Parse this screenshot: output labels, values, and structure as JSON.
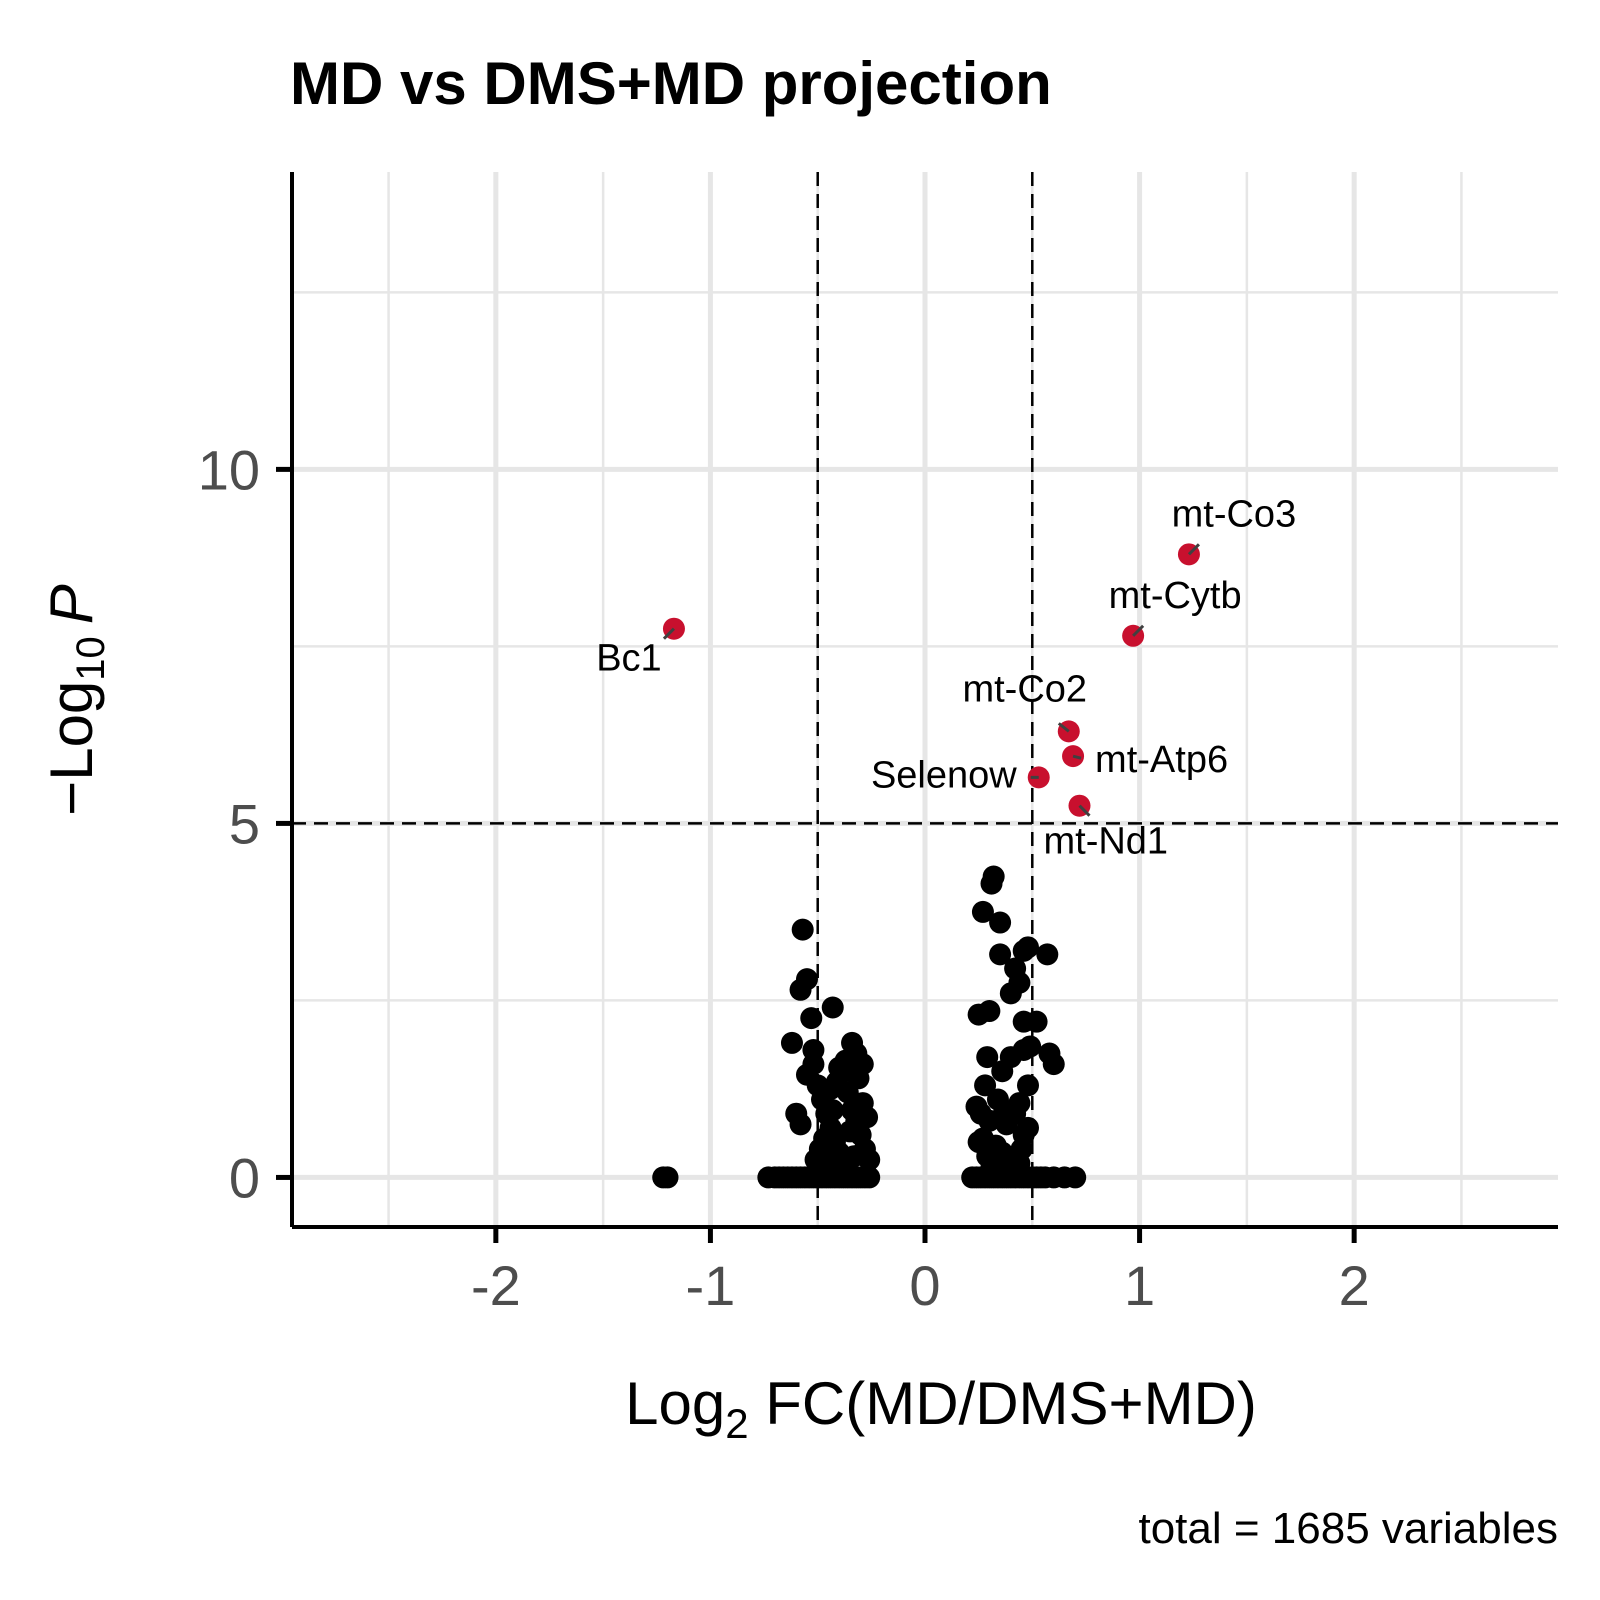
{
  "chart_data": {
    "type": "scatter",
    "title": "MD vs DMS+MD projection",
    "xlabel": {
      "prefix": "Log",
      "sub": "2",
      "suffix": " FC(MD/DMS+MD)"
    },
    "ylabel": {
      "prefix": "−Log",
      "sub": "10",
      "suffix": "P"
    },
    "caption": "total = 1685 variables",
    "xlim": [
      -2.95,
      2.95
    ],
    "ylim": [
      -0.7,
      14.2
    ],
    "x_ticks": [
      -2,
      -1,
      0,
      1,
      2
    ],
    "x_tick_labels": [
      "-2",
      "-1",
      "0",
      "1",
      "2"
    ],
    "y_ticks": [
      0,
      5,
      10
    ],
    "y_tick_labels": [
      "0",
      "5",
      "10"
    ],
    "fc_cutoff": 0.5,
    "p_cutoff": 5,
    "grid": true,
    "colors": {
      "ns": "#000000",
      "significant": "#c8102e",
      "connector": "#404040",
      "grid": "#e6e6e6"
    },
    "significant_points": [
      {
        "label": "mt-Co3",
        "x": 1.23,
        "y": 8.8
      },
      {
        "label": "mt-Cytb",
        "x": 0.97,
        "y": 7.65
      },
      {
        "label": "Bc1",
        "x": -1.17,
        "y": 7.75
      },
      {
        "label": "mt-Co2",
        "x": 0.67,
        "y": 6.3
      },
      {
        "label": "mt-Atp6",
        "x": 0.69,
        "y": 5.95
      },
      {
        "label": "Selenow",
        "x": 0.53,
        "y": 5.65
      },
      {
        "label": "mt-Nd1",
        "x": 0.72,
        "y": 5.25
      }
    ],
    "ns_points": [
      [
        -1.22,
        0
      ],
      [
        -1.2,
        0
      ],
      [
        -0.73,
        0
      ],
      [
        -0.7,
        0
      ],
      [
        -0.68,
        0
      ],
      [
        -0.66,
        0
      ],
      [
        -0.64,
        0
      ],
      [
        -0.62,
        0
      ],
      [
        -0.6,
        0
      ],
      [
        -0.58,
        0
      ],
      [
        -0.56,
        0
      ],
      [
        -0.54,
        0
      ],
      [
        -0.52,
        0
      ],
      [
        -0.5,
        0
      ],
      [
        -0.48,
        0
      ],
      [
        -0.46,
        0
      ],
      [
        -0.44,
        0
      ],
      [
        -0.42,
        0
      ],
      [
        -0.4,
        0
      ],
      [
        -0.38,
        0
      ],
      [
        -0.36,
        0
      ],
      [
        -0.34,
        0
      ],
      [
        -0.32,
        0
      ],
      [
        -0.3,
        0
      ],
      [
        -0.28,
        0
      ],
      [
        -0.26,
        0
      ],
      [
        -0.57,
        3.5
      ],
      [
        -0.55,
        2.8
      ],
      [
        -0.58,
        2.65
      ],
      [
        -0.43,
        2.4
      ],
      [
        -0.53,
        2.25
      ],
      [
        -0.62,
        1.9
      ],
      [
        -0.34,
        1.9
      ],
      [
        -0.52,
        1.8
      ],
      [
        -0.6,
        0.9
      ],
      [
        -0.58,
        0.75
      ],
      [
        -0.52,
        1.6
      ],
      [
        -0.5,
        1.3
      ],
      [
        -0.48,
        1.1
      ],
      [
        -0.46,
        0.9
      ],
      [
        -0.44,
        0.7
      ],
      [
        -0.42,
        0.5
      ],
      [
        -0.4,
        0.35
      ],
      [
        -0.38,
        1.5
      ],
      [
        -0.36,
        1.2
      ],
      [
        -0.34,
        0.95
      ],
      [
        -0.32,
        0.8
      ],
      [
        -0.3,
        0.6
      ],
      [
        -0.28,
        0.4
      ],
      [
        -0.26,
        0.25
      ],
      [
        -0.47,
        0.55
      ],
      [
        -0.41,
        1.35
      ],
      [
        -0.37,
        1.65
      ],
      [
        -0.31,
        1.4
      ],
      [
        -0.29,
        1.05
      ],
      [
        -0.27,
        0.85
      ],
      [
        -0.45,
        0.2
      ],
      [
        -0.39,
        0.15
      ],
      [
        -0.33,
        0.3
      ],
      [
        -0.49,
        0.4
      ],
      [
        -0.43,
        0.95
      ],
      [
        -0.35,
        0.65
      ],
      [
        -0.55,
        1.45
      ],
      [
        -0.51,
        0.25
      ],
      [
        -0.29,
        1.6
      ],
      [
        -0.32,
        1.75
      ],
      [
        -0.4,
        1.55
      ],
      [
        -0.44,
        1.25
      ],
      [
        0.22,
        0
      ],
      [
        0.24,
        0
      ],
      [
        0.26,
        0
      ],
      [
        0.28,
        0
      ],
      [
        0.3,
        0
      ],
      [
        0.32,
        0
      ],
      [
        0.34,
        0
      ],
      [
        0.36,
        0
      ],
      [
        0.38,
        0
      ],
      [
        0.4,
        0
      ],
      [
        0.42,
        0
      ],
      [
        0.44,
        0
      ],
      [
        0.46,
        0
      ],
      [
        0.48,
        0
      ],
      [
        0.5,
        0
      ],
      [
        0.52,
        0
      ],
      [
        0.54,
        0
      ],
      [
        0.56,
        0
      ],
      [
        0.6,
        0
      ],
      [
        0.65,
        0
      ],
      [
        0.7,
        0
      ],
      [
        0.32,
        4.25
      ],
      [
        0.31,
        4.15
      ],
      [
        0.27,
        3.75
      ],
      [
        0.35,
        3.6
      ],
      [
        0.35,
        3.15
      ],
      [
        0.46,
        3.2
      ],
      [
        0.48,
        3.25
      ],
      [
        0.57,
        3.15
      ],
      [
        0.42,
        2.95
      ],
      [
        0.4,
        2.6
      ],
      [
        0.44,
        2.75
      ],
      [
        0.3,
        2.35
      ],
      [
        0.25,
        2.3
      ],
      [
        0.46,
        2.2
      ],
      [
        0.52,
        2.2
      ],
      [
        0.29,
        1.7
      ],
      [
        0.46,
        1.8
      ],
      [
        0.49,
        1.85
      ],
      [
        0.58,
        1.75
      ],
      [
        0.6,
        1.6
      ],
      [
        0.4,
        1.7
      ],
      [
        0.36,
        1.5
      ],
      [
        0.28,
        1.3
      ],
      [
        0.34,
        1.1
      ],
      [
        0.48,
        1.3
      ],
      [
        0.24,
        1.0
      ],
      [
        0.26,
        0.9
      ],
      [
        0.3,
        0.8
      ],
      [
        0.38,
        0.75
      ],
      [
        0.42,
        0.9
      ],
      [
        0.44,
        1.05
      ],
      [
        0.46,
        0.6
      ],
      [
        0.27,
        0.55
      ],
      [
        0.33,
        0.45
      ],
      [
        0.36,
        0.35
      ],
      [
        0.4,
        0.25
      ],
      [
        0.44,
        0.2
      ],
      [
        0.31,
        0.15
      ],
      [
        0.25,
        0.5
      ],
      [
        0.37,
        0.95
      ],
      [
        0.45,
        0.4
      ],
      [
        0.29,
        0.3
      ],
      [
        0.48,
        0.7
      ]
    ]
  }
}
